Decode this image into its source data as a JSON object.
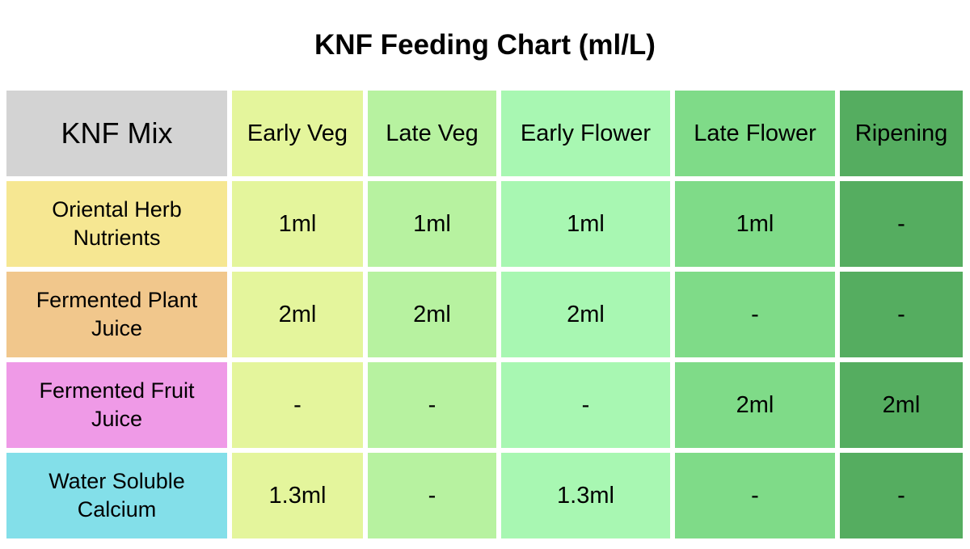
{
  "title": "KNF Feeding Chart (ml/L)",
  "table": {
    "corner_label": "KNF Mix",
    "corner_color": "#D3D3D3",
    "columns": [
      {
        "label": "Early Veg",
        "color": "#E4F59C"
      },
      {
        "label": "Late Veg",
        "color": "#B7F2A0"
      },
      {
        "label": "Early Flower",
        "color": "#A8F7B2"
      },
      {
        "label": "Late Flower",
        "color": "#7FDB88"
      },
      {
        "label": "Ripening",
        "color": "#55AD60"
      }
    ],
    "rows": [
      {
        "label": "Oriental Herb Nutrients",
        "color": "#F6E792",
        "values": [
          "1ml",
          "1ml",
          "1ml",
          "1ml",
          "-"
        ]
      },
      {
        "label": "Fermented Plant Juice",
        "color": "#F1C78C",
        "values": [
          "2ml",
          "2ml",
          "2ml",
          "-",
          "-"
        ]
      },
      {
        "label": "Fermented Fruit Juice",
        "color": "#EF9AE7",
        "values": [
          "-",
          "-",
          "-",
          "2ml",
          "2ml"
        ]
      },
      {
        "label": "Water Soluble Calcium",
        "color": "#83DFE9",
        "values": [
          "1.3ml",
          "-",
          "1.3ml",
          "-",
          "-"
        ]
      }
    ]
  },
  "chart_data": {
    "type": "table",
    "title": "KNF Feeding Chart (ml/L)",
    "columns": [
      "KNF Mix",
      "Early Veg",
      "Late Veg",
      "Early Flower",
      "Late Flower",
      "Ripening"
    ],
    "rows": [
      [
        "Oriental Herb Nutrients",
        "1ml",
        "1ml",
        "1ml",
        "1ml",
        "-"
      ],
      [
        "Fermented Plant Juice",
        "2ml",
        "2ml",
        "2ml",
        "-",
        "-"
      ],
      [
        "Fermented Fruit Juice",
        "-",
        "-",
        "-",
        "2ml",
        "2ml"
      ],
      [
        "Water Soluble Calcium",
        "1.3ml",
        "-",
        "1.3ml",
        "-",
        "-"
      ]
    ]
  }
}
